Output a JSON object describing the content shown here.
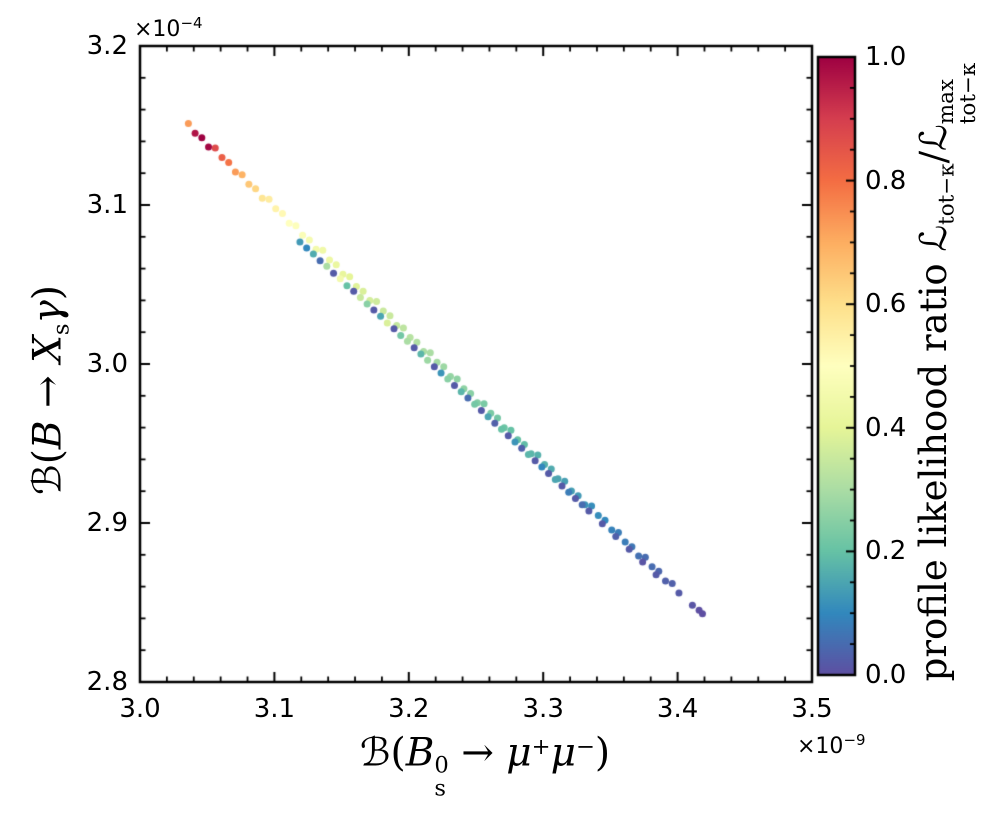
{
  "figure": {
    "background": "#ffffff",
    "spine_color": "#000000",
    "text_color": "#000000"
  },
  "axes": {
    "xlim": [
      3.0,
      3.5
    ],
    "ylim": [
      2.8,
      3.2
    ],
    "x_ticks": {
      "values": [
        3.0,
        3.1,
        3.2,
        3.3,
        3.4,
        3.5
      ],
      "labels": [
        "3.0",
        "3.1",
        "3.2",
        "3.3",
        "3.4",
        "3.5"
      ],
      "minor_step": 0.02
    },
    "y_ticks": {
      "values": [
        2.8,
        2.9,
        3.0,
        3.1,
        3.2
      ],
      "labels": [
        "2.8",
        "2.9",
        "3.0",
        "3.1",
        "3.2"
      ],
      "minor_step": 0.02
    },
    "x_offset": {
      "base": "×10",
      "exp": "−9"
    },
    "y_offset": {
      "base": "×10",
      "exp": "−4"
    },
    "xlabel_parts": [
      {
        "t": "ℬ",
        "s": "c"
      },
      {
        "t": "(",
        "s": "r"
      },
      {
        "t": "B",
        "s": "i"
      },
      {
        "s": "stack",
        "sup": "0",
        "sub": "s"
      },
      {
        "t": " → ",
        "s": "r"
      },
      {
        "t": "μ",
        "s": "i"
      },
      {
        "t": "+",
        "s": "sup"
      },
      {
        "t": "μ",
        "s": "i"
      },
      {
        "t": "−",
        "s": "sup"
      },
      {
        "t": ")",
        "s": "r"
      }
    ],
    "ylabel_parts": [
      {
        "t": "ℬ",
        "s": "c"
      },
      {
        "t": "(",
        "s": "r"
      },
      {
        "t": "B",
        "s": "i"
      },
      {
        "t": " → ",
        "s": "r"
      },
      {
        "t": "X",
        "s": "i"
      },
      {
        "t": "s",
        "s": "sub"
      },
      {
        "t": "γ",
        "s": "i"
      },
      {
        "t": ")",
        "s": "r"
      }
    ]
  },
  "colorbar": {
    "ticks": {
      "values": [
        0.0,
        0.2,
        0.4,
        0.6,
        0.8,
        1.0
      ],
      "labels": [
        "0.0",
        "0.2",
        "0.4",
        "0.6",
        "0.8",
        "1.0"
      ],
      "minor_step": 0.05
    },
    "stops": [
      "#5e4fa2",
      "#3288bd",
      "#66c2a5",
      "#abdda4",
      "#e6f598",
      "#ffffbf",
      "#fee08b",
      "#fdae61",
      "#f46d43",
      "#d53e4f",
      "#9e0142"
    ],
    "label_parts": [
      {
        "t": "profile likelihood ratio ",
        "s": "r"
      },
      {
        "t": "ℒ",
        "s": "c"
      },
      {
        "t": "tot−κ",
        "s": "sub"
      },
      {
        "t": "/",
        "s": "r"
      },
      {
        "t": "ℒ",
        "s": "c"
      },
      {
        "s": "stack",
        "sup": "max",
        "sub": "tot−κ"
      }
    ]
  },
  "chart_data": {
    "type": "scatter",
    "title": "",
    "xlabel": "ℬ(Bs0 → μ+μ−)",
    "ylabel": "ℬ(B → Xsγ)",
    "x_scale_factor": "×10−9",
    "y_scale_factor": "×10−4",
    "xlim": [
      3.0,
      3.5
    ],
    "ylim": [
      2.8,
      3.2
    ],
    "clim": [
      0.0,
      1.0
    ],
    "colormap": "Spectral_r",
    "color_label": "profile likelihood ratio L_tot−κ / L^max_tot−κ",
    "marker_diameter_px": 7,
    "points": [
      [
        3.036,
        3.1513,
        0.73
      ],
      [
        3.041,
        3.1452,
        0.97
      ],
      [
        3.046,
        3.1423,
        1.0
      ],
      [
        3.051,
        3.1365,
        0.99
      ],
      [
        3.056,
        3.1358,
        0.87
      ],
      [
        3.061,
        3.1298,
        0.83
      ],
      [
        3.066,
        3.1268,
        0.79
      ],
      [
        3.071,
        3.1207,
        0.73
      ],
      [
        3.076,
        3.1191,
        0.69
      ],
      [
        3.081,
        3.1131,
        0.65
      ],
      [
        3.086,
        3.1102,
        0.62
      ],
      [
        3.091,
        3.1043,
        0.58
      ],
      [
        3.096,
        3.1036,
        0.56
      ],
      [
        3.101,
        3.0976,
        0.54
      ],
      [
        3.106,
        3.0947,
        0.52
      ],
      [
        3.111,
        3.0886,
        0.5
      ],
      [
        3.116,
        3.0869,
        0.49
      ],
      [
        3.121,
        3.0809,
        0.48
      ],
      [
        3.126,
        3.078,
        0.46
      ],
      [
        3.131,
        3.0722,
        0.45
      ],
      [
        3.136,
        3.0715,
        0.44
      ],
      [
        3.141,
        3.0654,
        0.43
      ],
      [
        3.146,
        3.0625,
        0.42
      ],
      [
        3.151,
        3.0564,
        0.41
      ],
      [
        3.156,
        3.0548,
        0.4
      ],
      [
        3.161,
        3.0488,
        0.39
      ],
      [
        3.166,
        3.0458,
        0.38
      ],
      [
        3.171,
        3.04,
        0.37
      ],
      [
        3.176,
        3.0393,
        0.36
      ],
      [
        3.181,
        3.0333,
        0.35
      ],
      [
        3.186,
        3.0304,
        0.35
      ],
      [
        3.191,
        3.0242,
        0.34
      ],
      [
        3.196,
        3.0226,
        0.33
      ],
      [
        3.201,
        3.0166,
        0.32
      ],
      [
        3.206,
        3.0137,
        0.31
      ],
      [
        3.211,
        3.0079,
        0.3
      ],
      [
        3.216,
        3.0071,
        0.3
      ],
      [
        3.221,
        3.0011,
        0.29
      ],
      [
        3.226,
        2.9982,
        0.28
      ],
      [
        3.231,
        2.9921,
        0.27
      ],
      [
        3.236,
        2.9905,
        0.26
      ],
      [
        3.241,
        2.9845,
        0.26
      ],
      [
        3.246,
        2.9815,
        0.25
      ],
      [
        3.251,
        2.9757,
        0.24
      ],
      [
        3.256,
        2.975,
        0.23
      ],
      [
        3.261,
        2.969,
        0.23
      ],
      [
        3.266,
        2.9661,
        0.22
      ],
      [
        3.271,
        2.9599,
        0.21
      ],
      [
        3.276,
        2.9583,
        0.2
      ],
      [
        3.281,
        2.9523,
        0.2
      ],
      [
        3.286,
        2.9494,
        0.19
      ],
      [
        3.291,
        2.9436,
        0.18
      ],
      [
        3.296,
        2.9428,
        0.17
      ],
      [
        3.301,
        2.9368,
        0.17
      ],
      [
        3.306,
        2.9339,
        0.16
      ],
      [
        3.311,
        2.9278,
        0.15
      ],
      [
        3.316,
        2.9262,
        0.14
      ],
      [
        3.321,
        2.9202,
        0.14
      ],
      [
        3.326,
        2.9172,
        0.13
      ],
      [
        3.331,
        2.9114,
        0.12
      ],
      [
        3.336,
        2.9107,
        0.11
      ],
      [
        3.341,
        2.9047,
        0.11
      ],
      [
        3.346,
        2.9018,
        0.1
      ],
      [
        3.351,
        2.8956,
        0.09
      ],
      [
        3.356,
        2.894,
        0.08
      ],
      [
        3.361,
        2.888,
        0.08
      ],
      [
        3.366,
        2.8851,
        0.07
      ],
      [
        3.371,
        2.8793,
        0.06
      ],
      [
        3.376,
        2.8785,
        0.05
      ],
      [
        3.381,
        2.8725,
        0.05
      ],
      [
        3.386,
        2.8696,
        0.04
      ],
      [
        3.391,
        2.8635,
        0.03
      ],
      [
        3.396,
        2.8619,
        0.03
      ],
      [
        3.401,
        2.8559,
        0.02
      ],
      [
        3.411,
        2.8482,
        0.01
      ],
      [
        3.416,
        2.8452,
        0.0
      ],
      [
        3.119,
        3.0768,
        0.13
      ],
      [
        3.124,
        3.073,
        0.1
      ],
      [
        3.129,
        3.0692,
        0.16
      ],
      [
        3.134,
        3.065,
        0.05
      ],
      [
        3.139,
        3.0614,
        0.3
      ],
      [
        3.144,
        3.057,
        0.02
      ],
      [
        3.149,
        3.0536,
        0.45
      ],
      [
        3.154,
        3.0492,
        0.2
      ],
      [
        3.159,
        3.0457,
        0.02
      ],
      [
        3.164,
        3.0418,
        0.35
      ],
      [
        3.169,
        3.0377,
        0.25
      ],
      [
        3.174,
        3.034,
        0.02
      ],
      [
        3.179,
        3.03,
        0.15
      ],
      [
        3.184,
        3.0258,
        0.38
      ],
      [
        3.189,
        3.0222,
        0.02
      ],
      [
        3.194,
        3.018,
        0.22
      ],
      [
        3.199,
        3.0143,
        0.3
      ],
      [
        3.204,
        3.0102,
        0.02
      ],
      [
        3.209,
        3.0063,
        0.18
      ],
      [
        3.214,
        3.0024,
        0.28
      ],
      [
        3.219,
        2.9983,
        0.02
      ],
      [
        3.224,
        2.9944,
        0.12
      ],
      [
        3.229,
        2.9905,
        0.25
      ],
      [
        3.234,
        2.9865,
        0.02
      ],
      [
        3.239,
        2.9826,
        0.18
      ],
      [
        3.244,
        2.9786,
        0.05
      ],
      [
        3.249,
        2.9747,
        0.22
      ],
      [
        3.254,
        2.9707,
        0.02
      ],
      [
        3.259,
        2.9668,
        0.15
      ],
      [
        3.264,
        2.9628,
        0.03
      ],
      [
        3.269,
        2.9589,
        0.2
      ],
      [
        3.274,
        2.9549,
        0.02
      ],
      [
        3.279,
        2.951,
        0.12
      ],
      [
        3.284,
        2.947,
        0.03
      ],
      [
        3.289,
        2.9431,
        0.18
      ],
      [
        3.294,
        2.9391,
        0.02
      ],
      [
        3.299,
        2.9352,
        0.1
      ],
      [
        3.304,
        2.9312,
        0.02
      ],
      [
        3.309,
        2.9273,
        0.15
      ],
      [
        3.314,
        2.9233,
        0.02
      ],
      [
        3.319,
        2.9194,
        0.08
      ],
      [
        3.324,
        2.9154,
        0.02
      ],
      [
        3.329,
        2.9115,
        0.05
      ],
      [
        3.334,
        2.9075,
        0.02
      ],
      [
        3.344,
        2.8996,
        0.02
      ],
      [
        3.354,
        2.8915,
        0.03
      ],
      [
        3.364,
        2.8835,
        0.02
      ],
      [
        3.374,
        2.8755,
        0.01
      ],
      [
        3.384,
        2.8674,
        0.02
      ],
      [
        3.4185,
        2.843,
        0.0
      ]
    ]
  }
}
